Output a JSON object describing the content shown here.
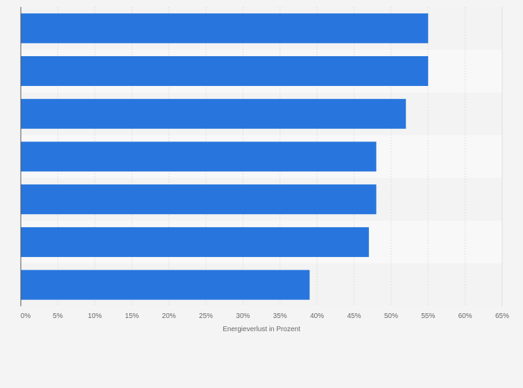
{
  "chart_data": {
    "type": "bar",
    "orientation": "horizontal",
    "categories": [
      "",
      "",
      "",
      "",
      "",
      "",
      ""
    ],
    "values": [
      55,
      55,
      52,
      48,
      48,
      47,
      39
    ],
    "xlabel": "Energieverlust in Prozent",
    "ylabel": "",
    "xlim": [
      0,
      65
    ],
    "xticks": [
      "0%",
      "5%",
      "10%",
      "15%",
      "20%",
      "25%",
      "30%",
      "35%",
      "40%",
      "45%",
      "50%",
      "55%",
      "60%",
      "65%"
    ],
    "grid": "vertical",
    "colors": {
      "bar": "#2876dd",
      "background": "#f4f4f4",
      "band_light": "#f8f8f8",
      "band_dark": "#f3f3f3",
      "gridline": "#dedede",
      "axis": "#555555",
      "text": "#666666"
    }
  }
}
